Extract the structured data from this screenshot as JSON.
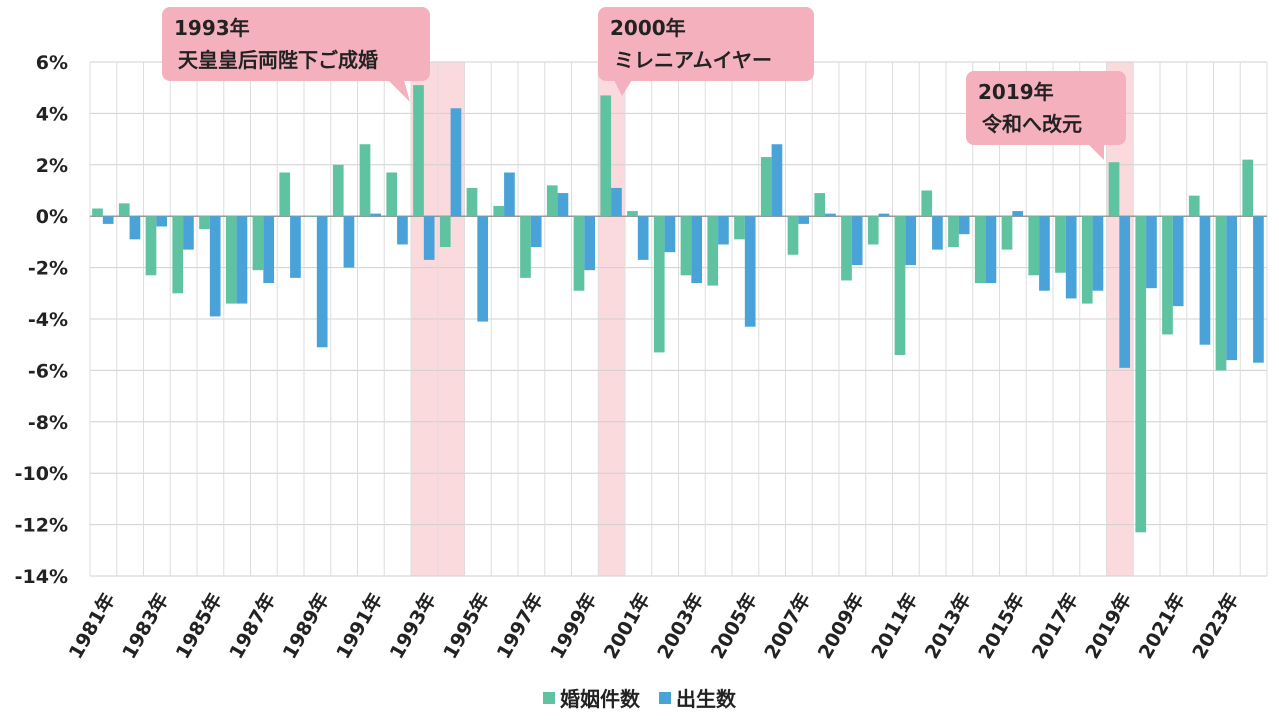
{
  "chart_data": {
    "type": "bar",
    "categories": [
      "1981年",
      "1982年",
      "1983年",
      "1984年",
      "1985年",
      "1986年",
      "1987年",
      "1988年",
      "1989年",
      "1990年",
      "1991年",
      "1992年",
      "1993年",
      "1994年",
      "1995年",
      "1996年",
      "1997年",
      "1998年",
      "1999年",
      "2000年",
      "2001年",
      "2002年",
      "2003年",
      "2004年",
      "2005年",
      "2006年",
      "2007年",
      "2008年",
      "2009年",
      "2010年",
      "2011年",
      "2012年",
      "2013年",
      "2014年",
      "2015年",
      "2016年",
      "2017年",
      "2018年",
      "2019年",
      "2020年",
      "2021年",
      "2022年",
      "2023年",
      "2024年"
    ],
    "x_tick_labels": [
      "1981年",
      "1983年",
      "1985年",
      "1987年",
      "1989年",
      "1991年",
      "1993年",
      "1995年",
      "1997年",
      "1999年",
      "2001年",
      "2003年",
      "2005年",
      "2007年",
      "2009年",
      "2011年",
      "2013年",
      "2015年",
      "2017年",
      "2019年",
      "2021年",
      "2023年"
    ],
    "series": [
      {
        "name": "婚姻件数",
        "color": "#5fc2a0",
        "values": [
          0.3,
          0.5,
          -2.3,
          -3.0,
          -0.5,
          -3.4,
          -2.1,
          1.7,
          0.0,
          2.0,
          2.8,
          1.7,
          5.1,
          -1.2,
          1.1,
          0.4,
          -2.4,
          1.2,
          -2.9,
          4.7,
          0.2,
          -5.3,
          -2.3,
          -2.7,
          -0.9,
          2.3,
          -1.5,
          0.9,
          -2.5,
          -1.1,
          -5.4,
          1.0,
          -1.2,
          -2.6,
          -1.3,
          -2.3,
          -2.2,
          -3.4,
          2.1,
          -12.3,
          -4.6,
          0.8,
          -6.0,
          2.2
        ]
      },
      {
        "name": "出生数",
        "color": "#4aa3d8",
        "values": [
          -0.3,
          -0.9,
          -0.4,
          -1.3,
          -3.9,
          -3.4,
          -2.6,
          -2.4,
          -5.1,
          -2.0,
          0.1,
          -1.1,
          -1.7,
          4.2,
          -4.1,
          1.7,
          -1.2,
          0.9,
          -2.1,
          1.1,
          -1.7,
          -1.4,
          -2.6,
          -1.1,
          -4.3,
          2.8,
          -0.3,
          0.1,
          -1.9,
          0.1,
          -1.9,
          -1.3,
          -0.7,
          -2.6,
          0.2,
          -2.9,
          -3.2,
          -2.9,
          -5.9,
          -2.8,
          -3.5,
          -5.0,
          -5.6,
          -5.7
        ]
      }
    ],
    "y_ticks": [
      "6%",
      "4%",
      "2%",
      "0%",
      "-2%",
      "-4%",
      "-6%",
      "-8%",
      "-10%",
      "-12%",
      "-14%"
    ],
    "ylim": [
      -14,
      6
    ],
    "grid": true,
    "legend": "bottom",
    "highlights": [
      {
        "year_index": 12,
        "line1": "1993年",
        "line2": "天皇皇后両陛下ご成婚"
      },
      {
        "year_index": 19,
        "line1": "2000年",
        "line2": "ミレニアムイヤー"
      },
      {
        "year_index": 38,
        "line1": "2019年",
        "line2": "令和へ改元"
      }
    ],
    "highlight_color": "#fadadd",
    "callout_color": "#f4b0bc"
  }
}
